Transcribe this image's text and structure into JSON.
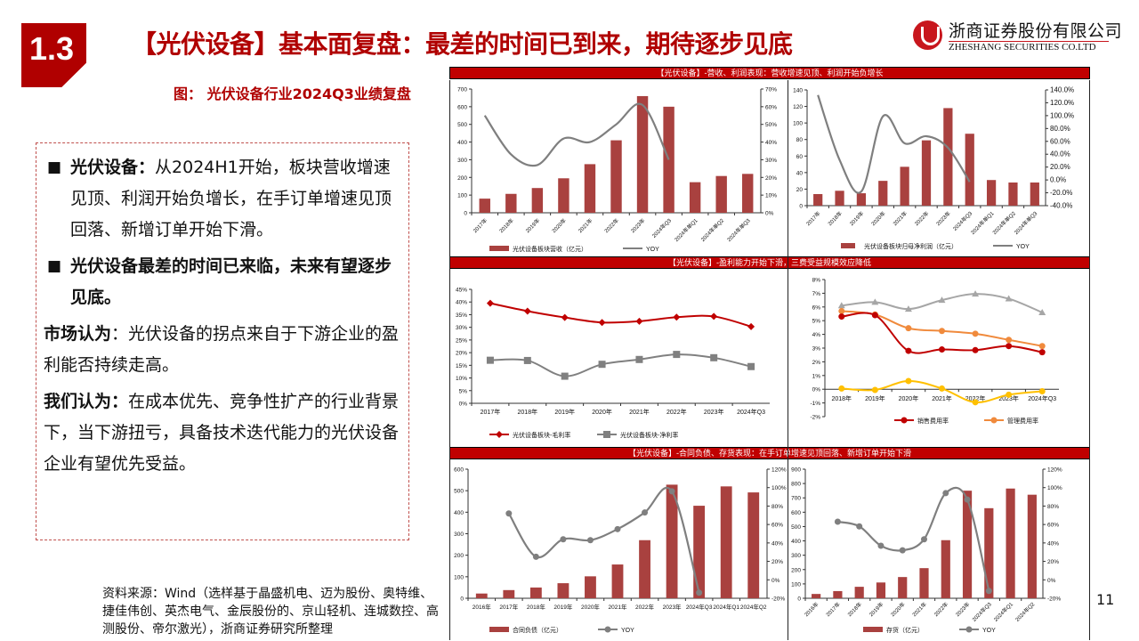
{
  "header": {
    "section_number": "1.3",
    "title": "【光伏设备】基本面复盘：最差的时间已到来，期待逐步见底",
    "figure_caption": "图：  光伏设备行业2024Q3业绩复盘"
  },
  "logo": {
    "name_cn": "浙商证券股份有限公司",
    "name_en": "ZHESHANG SECURITIES CO.LTD",
    "color": "#c8161d"
  },
  "text_block": {
    "bullet1_bold": "光伏设备：",
    "bullet1_text": "从2024H1开始，板块营收增速见顶、利润开始负增长，在手订单增速见顶回落、新增订单开始下滑。",
    "bullet2_bold": "光伏设备最差的时间已来临，未来有望逐步见底。",
    "para1_bold": "市场认为",
    "para1_text": "：光伏设备的拐点来自于下游企业的盈利能否持续走高。",
    "para2_bold": "我们认为：",
    "para2_text": "在成本优先、竞争性扩产的行业背景下，当下游扭亏，具备技术迭代能力的光伏设备企业有望优先受益。"
  },
  "source": "资料来源：Wind（选样基于晶盛机电、迈为股份、奥特维、捷佳伟创、英杰电气、金辰股份的、京山轻机、连城数控、高测股份、帝尔激光），浙商证券研究所整理",
  "page_number": "11",
  "panel_titles": {
    "row1": "【光伏设备】-营收、利润表现：营收增速见顶、利润开始负增长",
    "row2": "【光伏设备】-盈利能力开始下滑，三费受益规模效应降低",
    "row3": "【光伏设备】-合同负债、存货表现：在手订单增速见顶回落、新增订单开始下滑"
  },
  "colors": {
    "accent": "#b00000",
    "bar": "#a9413f",
    "yoy_line": "#7f7f7f"
  },
  "chart_data": [
    {
      "type": "bar+line",
      "categories": [
        "2017年",
        "2018年",
        "2019年",
        "2020年",
        "2021年",
        "2022年",
        "2023年",
        "2024年Q3",
        "2024年单Q1",
        "2024年单Q2",
        "2024年单Q3"
      ],
      "bar_series": {
        "name": "光伏设备板块营收（亿元）",
        "values": [
          80,
          107,
          140,
          195,
          275,
          410,
          660,
          600,
          173,
          208,
          220
        ]
      },
      "line_series": [
        {
          "name": "YOY",
          "axis": "right",
          "values": [
            55,
            33,
            27,
            42,
            40,
            50,
            61,
            30,
            null,
            null,
            null
          ]
        }
      ],
      "ylim": [
        0,
        700
      ],
      "yticks": [
        0,
        100,
        200,
        300,
        400,
        500,
        600,
        700
      ],
      "y2lim": [
        0,
        70
      ],
      "y2ticks": [
        "0%",
        "10%",
        "20%",
        "30%",
        "40%",
        "50%",
        "60%",
        "70%"
      ],
      "rotate_labels": true,
      "legend": "bottom"
    },
    {
      "type": "bar+line",
      "categories": [
        "2017年",
        "2018年",
        "2019年",
        "2020年",
        "2021年",
        "2022年",
        "2023年",
        "2024年Q3",
        "2024年单Q1",
        "2024年单Q2",
        "2024年单Q3"
      ],
      "bar_series": {
        "name": "光伏设备板块归母净利润（亿元）",
        "values": [
          14,
          18,
          15,
          30,
          47,
          79,
          118,
          87,
          31,
          28,
          28
        ]
      },
      "line_series": [
        {
          "name": "YOY",
          "axis": "right",
          "values": [
            132,
            31,
            -18,
            99,
            57,
            68,
            50,
            -3,
            null,
            null,
            null
          ]
        }
      ],
      "ylim": [
        0,
        140
      ],
      "yticks": [
        0,
        20,
        40,
        60,
        80,
        100,
        120,
        140
      ],
      "y2lim": [
        -40,
        140
      ],
      "y2ticks": [
        "-40.0%",
        "-20.0%",
        "0.0%",
        "20.0%",
        "40.0%",
        "60.0%",
        "80.0%",
        "100.0%",
        "120.0%",
        "140.0%"
      ],
      "rotate_labels": true,
      "legend": "bottom"
    },
    {
      "type": "line",
      "categories": [
        "2017年",
        "2018年",
        "2019年",
        "2020年",
        "2021年",
        "2022年",
        "2023年",
        "2024年Q3"
      ],
      "line_series": [
        {
          "name": "光伏设备板块-毛利率",
          "axis": "left",
          "color": "#c00000",
          "marker": "diamond",
          "values": [
            39.5,
            36.4,
            33.9,
            31.9,
            32.4,
            34.0,
            34.3,
            30.3
          ]
        },
        {
          "name": "光伏设备板块-净利率",
          "axis": "left",
          "color": "#808080",
          "marker": "square",
          "values": [
            17.0,
            16.9,
            10.7,
            15.4,
            17.3,
            19.3,
            18.0,
            14.5
          ]
        }
      ],
      "ylim": [
        0,
        45
      ],
      "yticks": [
        "0%",
        "5%",
        "10%",
        "15%",
        "20%",
        "25%",
        "30%",
        "35%",
        "40%",
        "45%"
      ],
      "rotate_labels": false,
      "legend": "bottom"
    },
    {
      "type": "line",
      "categories": [
        "2018年",
        "2019年",
        "2020年",
        "2021年",
        "2022年",
        "2023年",
        "2024年Q3"
      ],
      "line_series": [
        {
          "axis": "left",
          "color": "#a6a6a6",
          "marker": "triangle",
          "values": [
            6.1,
            6.35,
            5.85,
            6.5,
            6.95,
            6.6,
            5.6
          ]
        },
        {
          "name": "管理费用率",
          "axis": "left",
          "color": "#f08a3c",
          "marker": "circle",
          "values": [
            5.7,
            5.45,
            4.45,
            4.25,
            4.05,
            3.6,
            3.15
          ]
        },
        {
          "name": "销售费用率",
          "axis": "left",
          "color": "#c00000",
          "marker": "circle",
          "values": [
            5.3,
            5.4,
            2.8,
            2.9,
            2.85,
            3.15,
            2.7
          ]
        },
        {
          "axis": "left",
          "color": "#ffc000",
          "marker": "circle",
          "values": [
            0.05,
            -0.05,
            0.6,
            0.05,
            -0.95,
            -0.4,
            -0.15
          ]
        }
      ],
      "ylim": [
        -2,
        8
      ],
      "yticks": [
        "-2%",
        "-1%",
        "0%",
        "1%",
        "2%",
        "3%",
        "4%",
        "5%",
        "6%",
        "7%",
        "8%"
      ],
      "rotate_labels": false,
      "legend": "bottom"
    },
    {
      "type": "bar+line",
      "categories": [
        "2016年",
        "2017年",
        "2018年",
        "2019年",
        "2020年",
        "2021年",
        "2022年",
        "2023年",
        "2024年Q3",
        "2024年Q1",
        "2024年Q2"
      ],
      "bar_series": {
        "name": "合同负债（亿元）",
        "values": [
          22,
          38,
          50,
          70,
          102,
          157,
          270,
          528,
          430,
          520,
          492
        ]
      },
      "line_series": [
        {
          "name": "YOY",
          "axis": "right",
          "marker": "circle",
          "values": [
            null,
            72,
            25,
            44,
            43,
            55,
            73,
            96,
            -14,
            null,
            null
          ]
        }
      ],
      "ylim": [
        0,
        600
      ],
      "yticks": [
        0,
        100,
        200,
        300,
        400,
        500,
        600
      ],
      "y2lim": [
        -20,
        120
      ],
      "y2ticks": [
        "-20%",
        "0%",
        "20%",
        "40%",
        "60%",
        "80%",
        "100%",
        "120%"
      ],
      "rotate_labels": false,
      "legend": "bottom"
    },
    {
      "type": "bar+line",
      "categories": [
        "2016年",
        "2017年",
        "2018年",
        "2019年",
        "2020年",
        "2021年",
        "2022年",
        "2023年",
        "2024年Q3",
        "2024年Q1",
        "2024年Q2"
      ],
      "bar_series": {
        "name": "存货（亿元）",
        "values": [
          30,
          50,
          80,
          110,
          148,
          210,
          405,
          750,
          628,
          765,
          722
        ]
      },
      "line_series": [
        {
          "name": "YOY",
          "axis": "right",
          "marker": "circle",
          "values": [
            null,
            63,
            58,
            37,
            32,
            44,
            94,
            87,
            -12,
            null,
            null
          ]
        }
      ],
      "ylim": [
        0,
        900
      ],
      "yticks": [
        0,
        100,
        200,
        300,
        400,
        500,
        600,
        700,
        800,
        900
      ],
      "y2lim": [
        -20,
        120
      ],
      "y2ticks": [
        "-20%",
        "0%",
        "20%",
        "40%",
        "60%",
        "80%",
        "100%",
        "120%"
      ],
      "rotate_labels": true,
      "legend": "bottom"
    }
  ]
}
